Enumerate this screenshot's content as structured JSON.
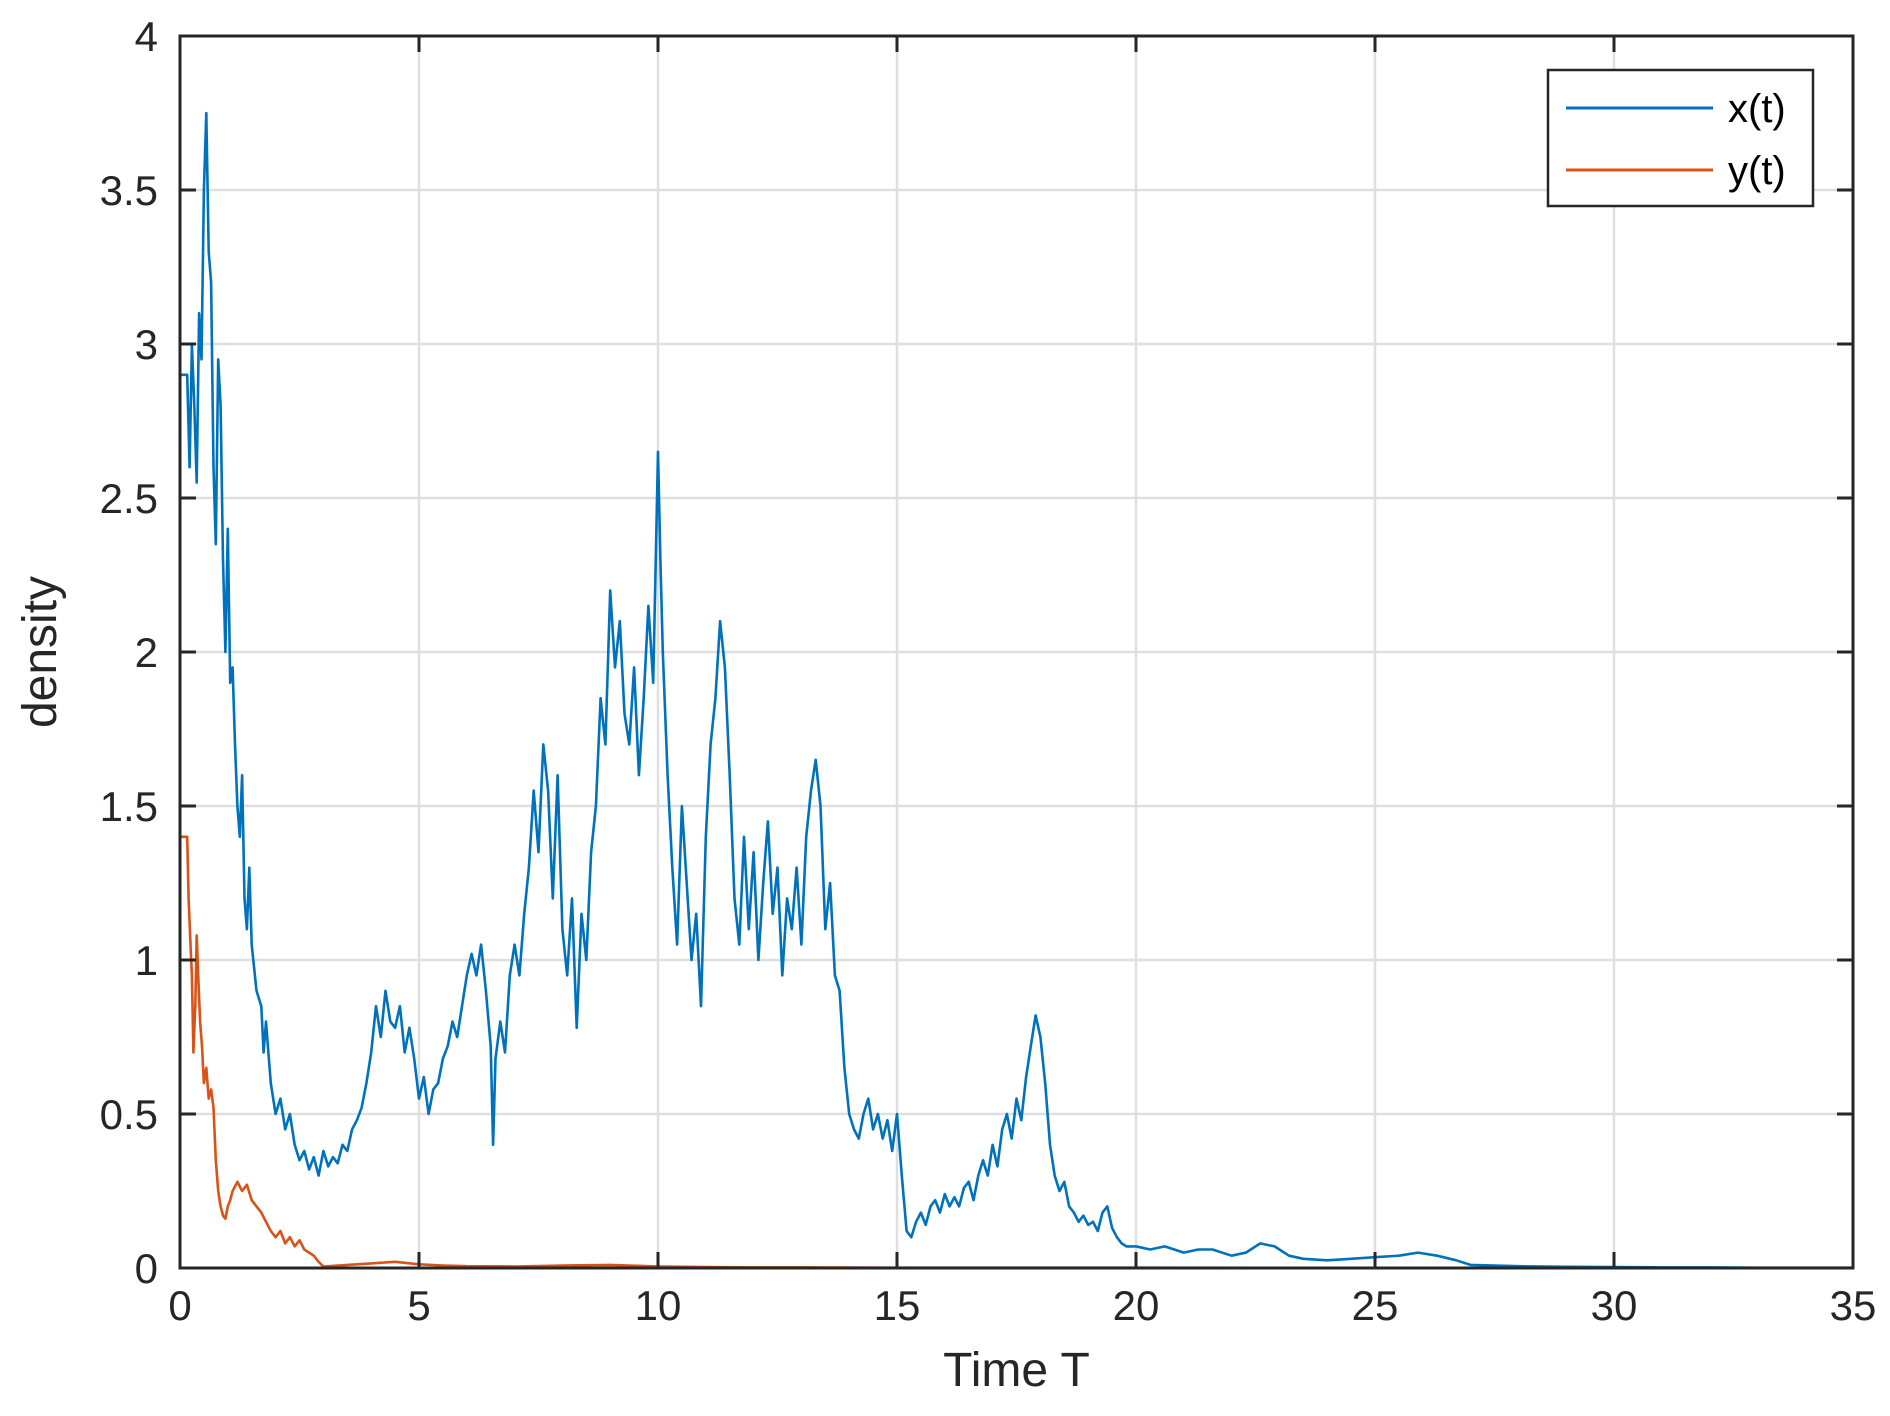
{
  "chart_data": {
    "type": "line",
    "xlabel": "Time T",
    "ylabel": "density",
    "xlim": [
      0,
      35
    ],
    "ylim": [
      0,
      4
    ],
    "xticks": [
      0,
      5,
      10,
      15,
      20,
      25,
      30,
      35
    ],
    "yticks": [
      0,
      0.5,
      1,
      1.5,
      2,
      2.5,
      3,
      3.5,
      4
    ],
    "xtick_labels": [
      "0",
      "5",
      "10",
      "15",
      "20",
      "25",
      "30",
      "35"
    ],
    "ytick_labels": [
      "0",
      "0.5",
      "1",
      "1.5",
      "2",
      "2.5",
      "3",
      "3.5",
      "4"
    ],
    "grid": true,
    "legend_position": "top-right",
    "series": [
      {
        "name": "x(t)",
        "color": "#0072BD",
        "points": [
          [
            0,
            2.9
          ],
          [
            0.15,
            2.9
          ],
          [
            0.2,
            2.6
          ],
          [
            0.25,
            3.0
          ],
          [
            0.3,
            2.8
          ],
          [
            0.35,
            2.55
          ],
          [
            0.4,
            3.1
          ],
          [
            0.45,
            2.95
          ],
          [
            0.5,
            3.5
          ],
          [
            0.55,
            3.75
          ],
          [
            0.6,
            3.3
          ],
          [
            0.65,
            3.2
          ],
          [
            0.7,
            2.6
          ],
          [
            0.75,
            2.35
          ],
          [
            0.8,
            2.95
          ],
          [
            0.85,
            2.8
          ],
          [
            0.9,
            2.3
          ],
          [
            0.95,
            2.0
          ],
          [
            1.0,
            2.4
          ],
          [
            1.05,
            1.9
          ],
          [
            1.1,
            1.95
          ],
          [
            1.15,
            1.7
          ],
          [
            1.2,
            1.5
          ],
          [
            1.25,
            1.4
          ],
          [
            1.3,
            1.6
          ],
          [
            1.35,
            1.2
          ],
          [
            1.4,
            1.1
          ],
          [
            1.45,
            1.3
          ],
          [
            1.5,
            1.05
          ],
          [
            1.6,
            0.9
          ],
          [
            1.7,
            0.85
          ],
          [
            1.75,
            0.7
          ],
          [
            1.8,
            0.8
          ],
          [
            1.9,
            0.6
          ],
          [
            2.0,
            0.5
          ],
          [
            2.1,
            0.55
          ],
          [
            2.2,
            0.45
          ],
          [
            2.3,
            0.5
          ],
          [
            2.4,
            0.4
          ],
          [
            2.5,
            0.35
          ],
          [
            2.6,
            0.38
          ],
          [
            2.7,
            0.32
          ],
          [
            2.8,
            0.36
          ],
          [
            2.9,
            0.3
          ],
          [
            3.0,
            0.38
          ],
          [
            3.1,
            0.33
          ],
          [
            3.2,
            0.36
          ],
          [
            3.3,
            0.34
          ],
          [
            3.4,
            0.4
          ],
          [
            3.5,
            0.38
          ],
          [
            3.6,
            0.45
          ],
          [
            3.7,
            0.48
          ],
          [
            3.8,
            0.52
          ],
          [
            3.9,
            0.6
          ],
          [
            4.0,
            0.7
          ],
          [
            4.1,
            0.85
          ],
          [
            4.2,
            0.75
          ],
          [
            4.3,
            0.9
          ],
          [
            4.4,
            0.8
          ],
          [
            4.5,
            0.78
          ],
          [
            4.6,
            0.85
          ],
          [
            4.7,
            0.7
          ],
          [
            4.8,
            0.78
          ],
          [
            4.9,
            0.68
          ],
          [
            5.0,
            0.55
          ],
          [
            5.1,
            0.62
          ],
          [
            5.2,
            0.5
          ],
          [
            5.3,
            0.58
          ],
          [
            5.4,
            0.6
          ],
          [
            5.5,
            0.68
          ],
          [
            5.6,
            0.72
          ],
          [
            5.7,
            0.8
          ],
          [
            5.8,
            0.75
          ],
          [
            5.9,
            0.85
          ],
          [
            6.0,
            0.95
          ],
          [
            6.1,
            1.02
          ],
          [
            6.2,
            0.95
          ],
          [
            6.3,
            1.05
          ],
          [
            6.4,
            0.9
          ],
          [
            6.5,
            0.72
          ],
          [
            6.55,
            0.4
          ],
          [
            6.6,
            0.68
          ],
          [
            6.7,
            0.8
          ],
          [
            6.8,
            0.7
          ],
          [
            6.9,
            0.95
          ],
          [
            7.0,
            1.05
          ],
          [
            7.1,
            0.95
          ],
          [
            7.2,
            1.15
          ],
          [
            7.3,
            1.3
          ],
          [
            7.4,
            1.55
          ],
          [
            7.5,
            1.35
          ],
          [
            7.6,
            1.7
          ],
          [
            7.7,
            1.55
          ],
          [
            7.8,
            1.2
          ],
          [
            7.9,
            1.6
          ],
          [
            8.0,
            1.1
          ],
          [
            8.1,
            0.95
          ],
          [
            8.2,
            1.2
          ],
          [
            8.3,
            0.78
          ],
          [
            8.4,
            1.15
          ],
          [
            8.5,
            1.0
          ],
          [
            8.6,
            1.35
          ],
          [
            8.7,
            1.5
          ],
          [
            8.8,
            1.85
          ],
          [
            8.9,
            1.7
          ],
          [
            9.0,
            2.2
          ],
          [
            9.1,
            1.95
          ],
          [
            9.2,
            2.1
          ],
          [
            9.3,
            1.8
          ],
          [
            9.4,
            1.7
          ],
          [
            9.5,
            1.95
          ],
          [
            9.6,
            1.6
          ],
          [
            9.7,
            1.85
          ],
          [
            9.8,
            2.15
          ],
          [
            9.9,
            1.9
          ],
          [
            10.0,
            2.65
          ],
          [
            10.05,
            2.3
          ],
          [
            10.1,
            2.0
          ],
          [
            10.2,
            1.6
          ],
          [
            10.3,
            1.3
          ],
          [
            10.4,
            1.05
          ],
          [
            10.5,
            1.5
          ],
          [
            10.6,
            1.25
          ],
          [
            10.7,
            1.0
          ],
          [
            10.8,
            1.15
          ],
          [
            10.9,
            0.85
          ],
          [
            11.0,
            1.4
          ],
          [
            11.1,
            1.7
          ],
          [
            11.2,
            1.85
          ],
          [
            11.3,
            2.1
          ],
          [
            11.4,
            1.95
          ],
          [
            11.5,
            1.6
          ],
          [
            11.6,
            1.2
          ],
          [
            11.7,
            1.05
          ],
          [
            11.8,
            1.4
          ],
          [
            11.9,
            1.1
          ],
          [
            12.0,
            1.35
          ],
          [
            12.1,
            1.0
          ],
          [
            12.2,
            1.25
          ],
          [
            12.3,
            1.45
          ],
          [
            12.4,
            1.15
          ],
          [
            12.5,
            1.3
          ],
          [
            12.6,
            0.95
          ],
          [
            12.7,
            1.2
          ],
          [
            12.8,
            1.1
          ],
          [
            12.9,
            1.3
          ],
          [
            13.0,
            1.05
          ],
          [
            13.1,
            1.4
          ],
          [
            13.2,
            1.55
          ],
          [
            13.3,
            1.65
          ],
          [
            13.4,
            1.5
          ],
          [
            13.5,
            1.1
          ],
          [
            13.6,
            1.25
          ],
          [
            13.7,
            0.95
          ],
          [
            13.8,
            0.9
          ],
          [
            13.9,
            0.65
          ],
          [
            14.0,
            0.5
          ],
          [
            14.1,
            0.45
          ],
          [
            14.2,
            0.42
          ],
          [
            14.3,
            0.5
          ],
          [
            14.4,
            0.55
          ],
          [
            14.5,
            0.45
          ],
          [
            14.6,
            0.5
          ],
          [
            14.7,
            0.42
          ],
          [
            14.8,
            0.48
          ],
          [
            14.9,
            0.38
          ],
          [
            15.0,
            0.5
          ],
          [
            15.1,
            0.3
          ],
          [
            15.2,
            0.12
          ],
          [
            15.3,
            0.1
          ],
          [
            15.4,
            0.15
          ],
          [
            15.5,
            0.18
          ],
          [
            15.6,
            0.14
          ],
          [
            15.7,
            0.2
          ],
          [
            15.8,
            0.22
          ],
          [
            15.9,
            0.18
          ],
          [
            16.0,
            0.24
          ],
          [
            16.1,
            0.2
          ],
          [
            16.2,
            0.23
          ],
          [
            16.3,
            0.2
          ],
          [
            16.4,
            0.26
          ],
          [
            16.5,
            0.28
          ],
          [
            16.6,
            0.22
          ],
          [
            16.7,
            0.3
          ],
          [
            16.8,
            0.35
          ],
          [
            16.9,
            0.3
          ],
          [
            17.0,
            0.4
          ],
          [
            17.1,
            0.33
          ],
          [
            17.2,
            0.45
          ],
          [
            17.3,
            0.5
          ],
          [
            17.4,
            0.42
          ],
          [
            17.5,
            0.55
          ],
          [
            17.6,
            0.48
          ],
          [
            17.7,
            0.62
          ],
          [
            17.8,
            0.72
          ],
          [
            17.9,
            0.82
          ],
          [
            18.0,
            0.75
          ],
          [
            18.1,
            0.6
          ],
          [
            18.2,
            0.4
          ],
          [
            18.3,
            0.3
          ],
          [
            18.4,
            0.25
          ],
          [
            18.5,
            0.28
          ],
          [
            18.6,
            0.2
          ],
          [
            18.7,
            0.18
          ],
          [
            18.8,
            0.15
          ],
          [
            18.9,
            0.17
          ],
          [
            19.0,
            0.14
          ],
          [
            19.1,
            0.15
          ],
          [
            19.2,
            0.12
          ],
          [
            19.3,
            0.18
          ],
          [
            19.4,
            0.2
          ],
          [
            19.5,
            0.13
          ],
          [
            19.6,
            0.1
          ],
          [
            19.7,
            0.08
          ],
          [
            19.8,
            0.07
          ],
          [
            20.0,
            0.07
          ],
          [
            20.3,
            0.06
          ],
          [
            20.6,
            0.07
          ],
          [
            21.0,
            0.05
          ],
          [
            21.3,
            0.06
          ],
          [
            21.6,
            0.06
          ],
          [
            22.0,
            0.04
          ],
          [
            22.3,
            0.05
          ],
          [
            22.6,
            0.08
          ],
          [
            22.9,
            0.07
          ],
          [
            23.2,
            0.04
          ],
          [
            23.5,
            0.03
          ],
          [
            24.0,
            0.025
          ],
          [
            24.5,
            0.03
          ],
          [
            25.0,
            0.035
          ],
          [
            25.5,
            0.04
          ],
          [
            25.9,
            0.05
          ],
          [
            26.3,
            0.04
          ],
          [
            26.7,
            0.025
          ],
          [
            27.0,
            0.01
          ],
          [
            27.5,
            0.008
          ],
          [
            28.0,
            0.006
          ],
          [
            29.0,
            0.004
          ],
          [
            30.0,
            0.003
          ],
          [
            31.0,
            0.002
          ],
          [
            32.0,
            0.002
          ],
          [
            33.0,
            0.001
          ],
          [
            34.0,
            0.001
          ],
          [
            35.0,
            0.001
          ]
        ]
      },
      {
        "name": "y(t)",
        "color": "#D95319",
        "points": [
          [
            0,
            1.4
          ],
          [
            0.15,
            1.4
          ],
          [
            0.18,
            1.2
          ],
          [
            0.22,
            1.05
          ],
          [
            0.25,
            0.95
          ],
          [
            0.28,
            0.7
          ],
          [
            0.32,
            0.85
          ],
          [
            0.35,
            1.08
          ],
          [
            0.38,
            0.95
          ],
          [
            0.42,
            0.8
          ],
          [
            0.46,
            0.72
          ],
          [
            0.5,
            0.6
          ],
          [
            0.55,
            0.65
          ],
          [
            0.6,
            0.55
          ],
          [
            0.65,
            0.58
          ],
          [
            0.7,
            0.52
          ],
          [
            0.75,
            0.35
          ],
          [
            0.8,
            0.25
          ],
          [
            0.85,
            0.2
          ],
          [
            0.9,
            0.17
          ],
          [
            0.95,
            0.16
          ],
          [
            1.0,
            0.2
          ],
          [
            1.05,
            0.22
          ],
          [
            1.1,
            0.25
          ],
          [
            1.2,
            0.28
          ],
          [
            1.3,
            0.25
          ],
          [
            1.4,
            0.27
          ],
          [
            1.5,
            0.22
          ],
          [
            1.6,
            0.2
          ],
          [
            1.7,
            0.18
          ],
          [
            1.8,
            0.15
          ],
          [
            1.9,
            0.12
          ],
          [
            2.0,
            0.1
          ],
          [
            2.1,
            0.12
          ],
          [
            2.2,
            0.08
          ],
          [
            2.3,
            0.1
          ],
          [
            2.4,
            0.07
          ],
          [
            2.5,
            0.09
          ],
          [
            2.6,
            0.06
          ],
          [
            2.7,
            0.05
          ],
          [
            2.8,
            0.04
          ],
          [
            2.9,
            0.02
          ],
          [
            3.0,
            0.005
          ],
          [
            3.5,
            0.01
          ],
          [
            4.0,
            0.015
          ],
          [
            4.5,
            0.02
          ],
          [
            5.0,
            0.012
          ],
          [
            5.5,
            0.008
          ],
          [
            6.0,
            0.006
          ],
          [
            7.0,
            0.005
          ],
          [
            8.0,
            0.008
          ],
          [
            9.0,
            0.01
          ],
          [
            10.0,
            0.005
          ],
          [
            11.0,
            0.003
          ],
          [
            12.0,
            0.002
          ],
          [
            13.0,
            0.002
          ],
          [
            15.0,
            0.001
          ],
          [
            20.0,
            0.001
          ],
          [
            25.0,
            0.0005
          ],
          [
            30.0,
            0.0003
          ],
          [
            35.0,
            0.0002
          ]
        ]
      }
    ]
  }
}
